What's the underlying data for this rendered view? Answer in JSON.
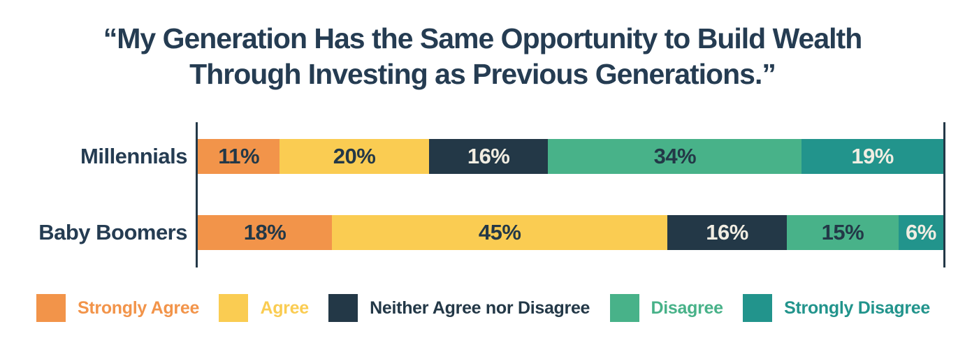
{
  "title": {
    "line1": "“My Generation Has the Same Opportunity to Build Wealth",
    "line2": "Through Investing as Previous Generations.”"
  },
  "colors": {
    "title_text": "#253C52",
    "axis_line": "#233847",
    "dark_value_text": "#233847",
    "light_value_text": "#F1EDE2"
  },
  "chart_data": {
    "type": "bar",
    "stacked": true,
    "orientation": "horizontal",
    "title": "“My Generation Has the Same Opportunity to Build Wealth Through Investing as Previous Generations.”",
    "categories": [
      "Millennials",
      "Baby Boomers"
    ],
    "series": [
      {
        "name": "Strongly Agree",
        "color": "#F2944A",
        "label_style": "dark",
        "values": [
          11,
          18
        ]
      },
      {
        "name": "Agree",
        "color": "#FACC52",
        "label_style": "dark",
        "values": [
          20,
          45
        ]
      },
      {
        "name": "Neither Agree nor Disagree",
        "color": "#233847",
        "label_style": "light",
        "values": [
          16,
          16
        ]
      },
      {
        "name": "Disagree",
        "color": "#48B289",
        "label_style": "dark",
        "values": [
          34,
          15
        ]
      },
      {
        "name": "Strongly Disagree",
        "color": "#22948C",
        "label_style": "light",
        "values": [
          19,
          6
        ]
      }
    ],
    "value_format": "percent",
    "value_suffix": "%",
    "xlim": [
      0,
      100
    ],
    "grid": false,
    "legend_position": "bottom"
  }
}
